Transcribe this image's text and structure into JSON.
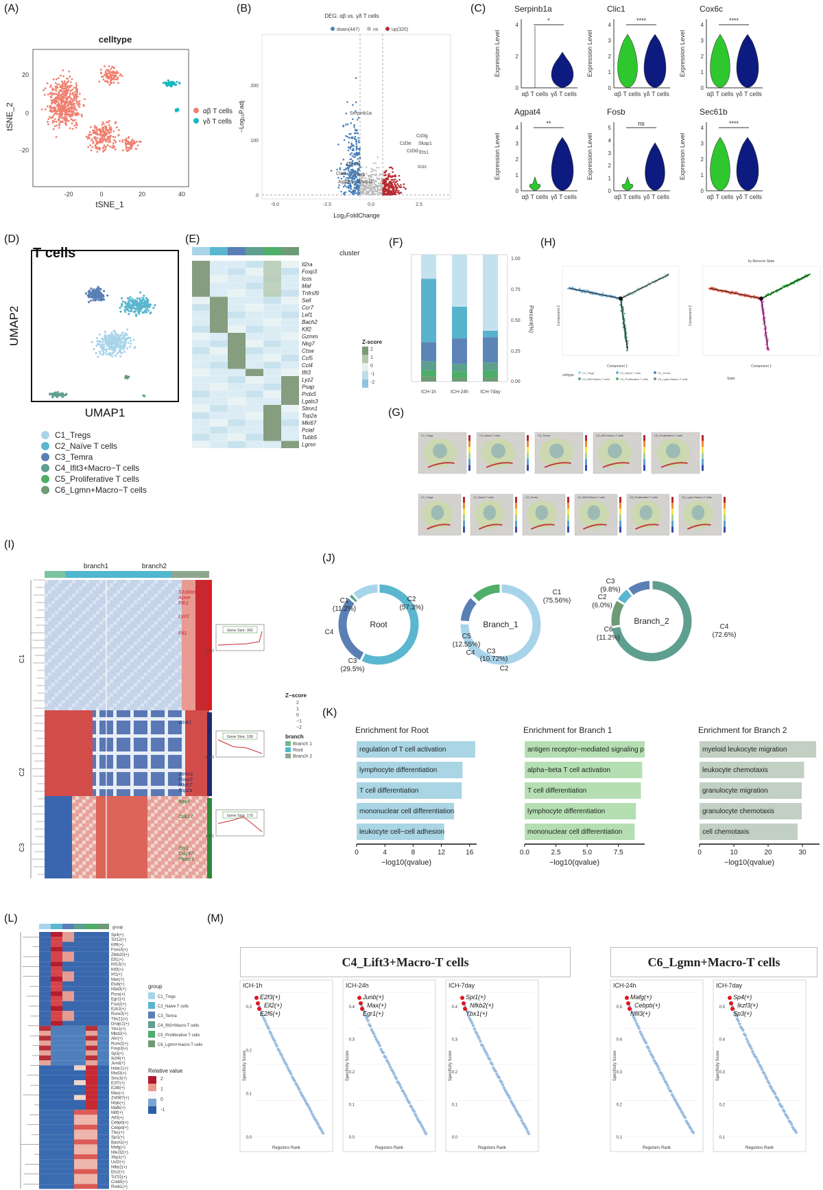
{
  "labels": [
    "(A)",
    "(B)",
    "(C)",
    "(D)",
    "(E)",
    "(F)",
    "(G)",
    "(H)",
    "(I)",
    "(J)",
    "(K)",
    "(L)",
    "(M)"
  ],
  "colors": {
    "ab": "#f08070",
    "gd": "#17b8c0",
    "down": "#4a80b8",
    "up": "#b82a30",
    "ns": "#bbbbbb",
    "violin_green": "#2ec82e",
    "violin_navy": "#0d1a80",
    "c1": "#a8d4ea",
    "c2": "#5bb6cf",
    "c3": "#5a7fb5",
    "c4": "#5f9f8f",
    "c5": "#4fae6a",
    "c6": "#6e9a76"
  },
  "panelA": {
    "title": "celltype",
    "xlabel": "tSNE_1",
    "ylabel": "tSNE_2",
    "xticks": [
      "-20",
      "0",
      "20",
      "40"
    ],
    "yticks": [
      "20",
      "0",
      "-20"
    ],
    "legend": [
      "αβ T cells",
      "γδ T cells"
    ]
  },
  "panelB": {
    "title": "DEG: αβ vs. γδ T cells",
    "legend": [
      "down(447)",
      "ns",
      "up(320)"
    ],
    "xlabel": "Log₂FoldChange",
    "ylabel": "−Log₁₀P.adj",
    "xticks": [
      "-5.0",
      "-2.5",
      "0.0",
      "2.5"
    ],
    "yticks": [
      "200",
      "100",
      "0"
    ],
    "genes": [
      "Serpinb1a",
      "Cd3g",
      "Cd3e",
      "Skap1",
      "Cd3d",
      "Ets1",
      "Icos",
      "Cox6c",
      "Clic1",
      "Fosb",
      "Agpat4",
      "Sec61b"
    ]
  },
  "panelC": {
    "ylabel": "Expression Level",
    "groups": [
      "αβ T cells",
      "γδ T cells"
    ],
    "plots": [
      {
        "gene": "Serpinb1a",
        "sig": "*",
        "yticks": [
          "4",
          "2",
          "0"
        ]
      },
      {
        "gene": "Clic1",
        "sig": "****",
        "yticks": [
          "4",
          "3",
          "2",
          "1",
          "0"
        ]
      },
      {
        "gene": "Cox6c",
        "sig": "****",
        "yticks": [
          "4",
          "3",
          "2",
          "1",
          "0"
        ]
      },
      {
        "gene": "Agpat4",
        "sig": "**",
        "yticks": [
          "4",
          "3",
          "2",
          "1",
          "0"
        ]
      },
      {
        "gene": "Fosb",
        "sig": "ns",
        "yticks": [
          "5",
          "4",
          "3",
          "2",
          "1",
          "0"
        ]
      },
      {
        "gene": "Sec61b",
        "sig": "****",
        "yticks": [
          "4",
          "3",
          "2",
          "1",
          "0"
        ]
      }
    ]
  },
  "panelD": {
    "title": "T cells",
    "xlabel": "UMAP1",
    "ylabel": "UMAP2",
    "legend": [
      "C1_Tregs",
      "C2_Naïve T cells",
      "C3_Temra",
      "C4_Ifit3+Macro−T cells",
      "C5_Proliferative T cells",
      "C6_Lgmn+Macro−T cells"
    ]
  },
  "panelE": {
    "cluster_label": "cluster",
    "genes": [
      "Il2ra",
      "Foxp3",
      "Icos",
      "Maf",
      "Tnfrsf9",
      "Sell",
      "Ccr7",
      "Lef1",
      "Bach2",
      "Klf2",
      "Gzmm",
      "Nkg7",
      "Ctsw",
      "Ccl5",
      "Ccl4",
      "Ifit3",
      "Lyz2",
      "Psap",
      "Prdx5",
      "Lgals3",
      "Stmn1",
      "Top2a",
      "Mki67",
      "Pclaf",
      "Tubb5",
      "Lgmn"
    ],
    "zscore_title": "Z-score",
    "zscore_ticks": [
      "2",
      "1",
      "0",
      "-1",
      "-2"
    ]
  },
  "panelF": {
    "xlabels": [
      "ICH-1h",
      "ICH-24h",
      "ICH-7day"
    ],
    "ylabel": "Percent(%)",
    "yticks": [
      "1.00",
      "0.75",
      "0.50",
      "0.25",
      "0.00"
    ]
  },
  "chart_data": {
    "type": "bar",
    "title": "",
    "categories": [
      "ICH-1h",
      "ICH-24h",
      "ICH-7day"
    ],
    "series": [
      {
        "name": "C6",
        "values": [
          0.04,
          0.03,
          0.03
        ]
      },
      {
        "name": "C5",
        "values": [
          0.05,
          0.05,
          0.06
        ]
      },
      {
        "name": "C4",
        "values": [
          0.07,
          0.06,
          0.06
        ]
      },
      {
        "name": "C3",
        "values": [
          0.15,
          0.2,
          0.2
        ]
      },
      {
        "name": "C2",
        "values": [
          0.5,
          0.25,
          0.05
        ]
      },
      {
        "name": "C1",
        "values": [
          0.19,
          0.41,
          0.6
        ]
      }
    ],
    "ylim": [
      0,
      1
    ],
    "ylabel": "Percent(%)"
  },
  "panelH": {
    "subtitle": "by Monocle State",
    "xlabel": "Component 1",
    "ylabel": "Component 2",
    "legend_left_title": "celltype",
    "legend_right_title": "State",
    "legend_left": [
      "C1_Tregs",
      "C2_Naive T cells",
      "C3_Temra",
      "C4_Ifit3+Macro-T cells",
      "C5_Proliferative T cells",
      "C6_Lgmn+Macro-T cells"
    ]
  },
  "panelG": {
    "row1": [
      "C1_Tregs",
      "C2_Naive T cells",
      "C3_Temra",
      "C4_Ifit3+Macro-T cells",
      "C5_Proliferative T cells"
    ],
    "row2": [
      "C1_Tregs",
      "C2_Naive T cells",
      "C3_Temra",
      "C4_Ifit3+Macro-T cells",
      "C5_Proliferative T cells",
      "C6_Lgmn+Macro-T cells"
    ]
  },
  "panelI": {
    "branch1": "branch1",
    "branch2": "branch2",
    "clusters": [
      "C1",
      "C2",
      "C3"
    ],
    "genes_c1": [
      "S100a9",
      "Apoe",
      "Fth1",
      "Lyz2",
      "Ftl1"
    ],
    "genes_c2": [
      "Wnk1",
      "Stmn1",
      "Foxp3",
      "Mki67",
      "Top2a"
    ],
    "genes_c3": [
      "Itga4",
      "Cdk17",
      "Ets1",
      "Cd247",
      "Ptpnc1"
    ],
    "gene_sizes": [
      "Gene Size: 362",
      "Gene Size: 199",
      "Gene Size: 175"
    ],
    "n_labels": [
      "n:362",
      "n:199",
      "n:175"
    ],
    "zscore_title": "Z−score",
    "zscore_ticks": [
      "2",
      "1",
      "0",
      "−1",
      "−2"
    ],
    "branch_legend_title": "branch",
    "branch_legend": [
      "Branch 1",
      "Root",
      "Branch 2"
    ]
  },
  "panelJ": {
    "donuts": [
      {
        "center": "Root",
        "labels": [
          {
            "t": "C2",
            "v": "(57.3%)"
          },
          {
            "t": "C1",
            "v": "(11.2%)"
          },
          {
            "t": "C4",
            "v": ""
          },
          {
            "t": "C3",
            "v": "(29.5%)"
          }
        ],
        "slices": [
          {
            "c": "c2",
            "p": 57.3
          },
          {
            "c": "c3",
            "p": 29.5
          },
          {
            "c": "c4",
            "p": 2.0
          },
          {
            "c": "c1",
            "p": 11.2
          }
        ]
      },
      {
        "center": "Branch_1",
        "labels": [
          {
            "t": "C1",
            "v": "(75.56%)"
          },
          {
            "t": "C5",
            "v": "(12.55%)"
          },
          {
            "t": "C4",
            "v": ""
          },
          {
            "t": "C3",
            "v": "(10.72%)"
          },
          {
            "t": "C2",
            "v": ""
          }
        ],
        "slices": [
          {
            "c": "c1",
            "p": 75.56
          },
          {
            "c": "c2",
            "p": 0.6
          },
          {
            "c": "c3",
            "p": 10.72
          },
          {
            "c": "c4",
            "p": 0.57
          },
          {
            "c": "c5",
            "p": 12.55
          }
        ]
      },
      {
        "center": "Branch_2",
        "labels": [
          {
            "t": "C4",
            "v": "(72.6%)"
          },
          {
            "t": "C6",
            "v": "(11.2%)"
          },
          {
            "t": "C2",
            "v": "(6.0%)"
          },
          {
            "t": "C3",
            "v": "(9.8%)"
          }
        ],
        "slices": [
          {
            "c": "c4",
            "p": 72.6
          },
          {
            "c": "c6",
            "p": 11.2
          },
          {
            "c": "c2",
            "p": 6.0
          },
          {
            "c": "c3",
            "p": 9.8
          },
          {
            "c": "c1",
            "p": 0.4
          }
        ]
      }
    ]
  },
  "panelK": {
    "xlabel": "−log10(qvalue)",
    "plots": [
      {
        "title": "Enrichment for Root",
        "color": "#a9d5e4",
        "xticks": [
          "0",
          "4",
          "8",
          "12",
          "16"
        ],
        "xmax": 17,
        "terms": [
          "regulation of T cell activation",
          "lymphocyte differentiation",
          "T cell differentiation",
          "mononuclear cell differentiation",
          "leukocyte cell−cell adhesion"
        ],
        "values": [
          16.8,
          15,
          14.9,
          13.8,
          12.4
        ]
      },
      {
        "title": "Enrichment for Branch 1",
        "color": "#b5dfb2",
        "xticks": [
          "0.0",
          "2.5",
          "5.0",
          "7.5"
        ],
        "xmax": 9.6,
        "terms": [
          "antigen receptor−mediated signaling p",
          "alpha−beta T cell activation",
          "T cell differentiation",
          "lymphocyte differentiation",
          "mononuclear cell differentiation"
        ],
        "values": [
          9.6,
          9.4,
          9.3,
          8.9,
          8.8
        ]
      },
      {
        "title": "Enrichment for Branch 2",
        "color": "#c2cfc3",
        "xticks": [
          "0",
          "10",
          "20",
          "30"
        ],
        "xmax": 35,
        "terms": [
          "myeloid leukocyte migration",
          "leukocyte chemotaxis",
          "granulocyte migration",
          "granulocyte chemotaxis",
          "cell chemotaxis"
        ],
        "values": [
          34,
          30.5,
          29.8,
          29.8,
          28.6
        ]
      }
    ]
  },
  "panelL": {
    "group_label": "group",
    "regulons": [
      "Sp4(+)",
      "Tcf12(+)",
      "Klf9(+)",
      "Foxo3(+)",
      "Zbtb20(+)",
      "Elf1(+)",
      "Klf13(+)",
      "Klf3(+)",
      "Irf1(+)",
      "Max(+)",
      "Etv6(+)",
      "Nfat3(+)",
      "Pura(+)",
      "Egr1(+)",
      "Fosl2(+)",
      "Ezh2(+)",
      "Runx3(+)",
      "Tbx21(+)",
      "Dnajc1(+)",
      "Ybx1(+)",
      "Mbd2(+)",
      "Ahr(+)",
      "Runx2(+)",
      "Foxp3(+)",
      "Sp3(+)",
      "Ikzf4(+)",
      "Jund(+)",
      "Hdac1(+)",
      "Mxd3(+)",
      "Smc3(+)",
      "E2f7(+)",
      "E2f8(+)",
      "Max(+)",
      "Znf367(+)",
      "Nfyb(+)",
      "Mafb(+)",
      "Mitf(+)",
      "Atf3(+)",
      "Cebpb(+)",
      "Cebpd(+)",
      "Tfec(+)",
      "Spi1(+)",
      "Bach1(+)",
      "Mafg(+)",
      "Nfe2l2(+)",
      "Xbp1(+)",
      "Usf2(+)",
      "Nfkb2(+)",
      "Ets2(+)",
      "Tcf7l2(+)",
      "Creb5(+)",
      "Rreb1(+)"
    ],
    "legend_title": "group",
    "legend": [
      "C1_Tregs",
      "C2_Naive T cells",
      "C3_Temra",
      "C4_Ifit3+Macro-T cells",
      "C5_Proliferative T cells",
      "C6_Lgmn+macro-T cells"
    ],
    "relval_title": "Relative value",
    "relval_ticks": [
      "2",
      "1",
      "0",
      "-1"
    ]
  },
  "panelM": {
    "box1_title": "C4_Lift3+Macro-T cells",
    "box2_title": "C6_Lgmn+Macro-T cells",
    "xlabel": "Regulons Rank",
    "ylabel": "Specificity Score",
    "plots": [
      {
        "title": "ICH-1h",
        "labels": [
          "E2f3(+)",
          "Ell2(+)",
          "E2f6(+)"
        ],
        "yticks": [
          "0.3",
          "0.2",
          "0.1",
          "0.0"
        ]
      },
      {
        "title": "ICH-24h",
        "labels": [
          "Junb(+)",
          "Max(+)",
          "Egr1(+)"
        ],
        "yticks": [
          "0.4",
          "0.3",
          "0.2",
          "0.1",
          "0.0"
        ]
      },
      {
        "title": "ICH-7day",
        "labels": [
          "Spi1(+)",
          "Nfkb2(+)",
          "Ybx1(+)"
        ],
        "yticks": [
          "0.4",
          "0.3",
          "0.2",
          "0.1",
          "0.0"
        ]
      },
      {
        "title": "ICH-24h",
        "labels": [
          "Mafg(+)",
          "Cebpb(+)",
          "Nfil3(+)"
        ],
        "yticks": [
          "0.5",
          "0.4",
          "0.3",
          "0.2",
          "0.1"
        ]
      },
      {
        "title": "ICH-7day",
        "labels": [
          "Sp4(+)",
          "Ikzf3(+)",
          "Sp3(+)"
        ],
        "yticks": [
          "0.5",
          "0.4",
          "0.3",
          "0.2",
          "0.1"
        ]
      }
    ]
  }
}
